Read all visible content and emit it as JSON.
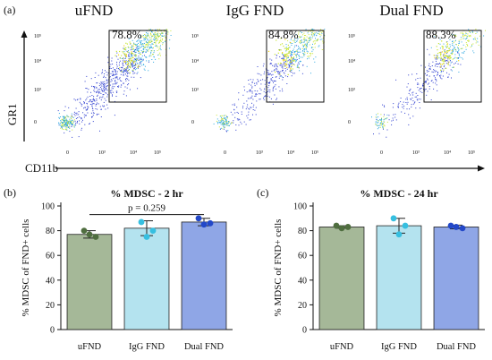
{
  "figure": {
    "panel_a": "(a)",
    "panel_b": "(b)",
    "panel_c": "(c)"
  },
  "flow": {
    "ylabel": "GR1",
    "xlabel": "CD11b",
    "plots": [
      {
        "title": "uFND",
        "gate_percent": "78.8%",
        "y_ticks": [
          "10⁵",
          "10⁴",
          "10³",
          "0"
        ],
        "x_ticks": [
          "0",
          "10³",
          "10⁴",
          "10⁵"
        ]
      },
      {
        "title": "IgG FND",
        "gate_percent": "84.8%",
        "y_ticks": [
          "10⁵",
          "10⁴",
          "10³",
          "0"
        ],
        "x_ticks": [
          "0",
          "10³",
          "10⁴",
          "10⁵"
        ]
      },
      {
        "title": "Dual FND",
        "gate_percent": "88.3%",
        "y_ticks": [
          "10⁵",
          "10⁴",
          "10³",
          "0"
        ],
        "x_ticks": [
          "0",
          "10³",
          "10⁴",
          "10⁵"
        ]
      }
    ],
    "colors": {
      "low": "#2f3fd0",
      "mid": "#2ea8e0",
      "high": "#c8e632",
      "peak": "#f2d21a"
    }
  },
  "chart_data": [
    {
      "type": "bar",
      "title": "% MDSC - 2 hr",
      "ylabel": "% MDSC of FND+ cells",
      "categories": [
        "uFND",
        "IgG FND",
        "Dual FND"
      ],
      "values": [
        77,
        82,
        87
      ],
      "error": [
        3,
        6,
        3
      ],
      "points": [
        [
          80,
          75,
          77
        ],
        [
          87,
          80,
          75
        ],
        [
          90,
          86,
          85
        ]
      ],
      "ylim": [
        0,
        100
      ],
      "yticks": [
        0,
        20,
        40,
        60,
        80,
        100
      ],
      "bar_colors": [
        "#a5b898",
        "#b4e3ef",
        "#8fa6e6"
      ],
      "point_colors": [
        "#4f6e3f",
        "#36bfe0",
        "#2348c8"
      ],
      "annotation": "p = 0.259"
    },
    {
      "type": "bar",
      "title": "% MDSC - 24 hr",
      "ylabel": "% MDSC of FND+ cells",
      "categories": [
        "uFND",
        "IgG FND",
        "Dual FND"
      ],
      "values": [
        83,
        84,
        83
      ],
      "error": [
        1,
        6,
        1.5
      ],
      "points": [
        [
          84,
          83,
          82
        ],
        [
          90,
          84,
          77
        ],
        [
          84,
          82,
          83
        ]
      ],
      "ylim": [
        0,
        100
      ],
      "yticks": [
        0,
        20,
        40,
        60,
        80,
        100
      ],
      "bar_colors": [
        "#a5b898",
        "#b4e3ef",
        "#8fa6e6"
      ],
      "point_colors": [
        "#4f6e3f",
        "#36bfe0",
        "#2348c8"
      ]
    }
  ]
}
